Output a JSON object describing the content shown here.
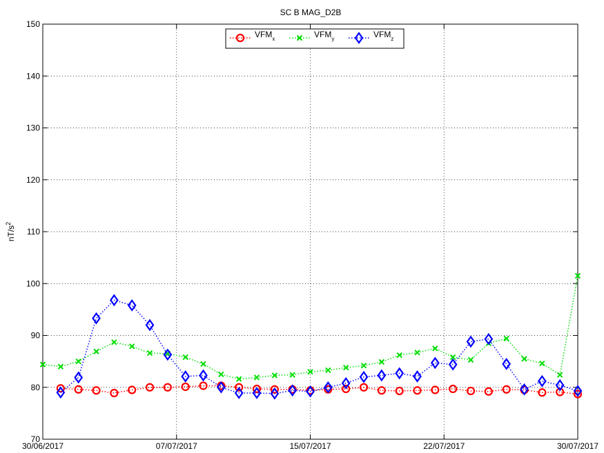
{
  "chart_data": {
    "type": "line",
    "title": "SC B MAG_D2B",
    "ylabel": "nT/s",
    "ylabel_sup": "2",
    "x": [
      0,
      1,
      2,
      3,
      4,
      5,
      6,
      7,
      8,
      9,
      10,
      11,
      12,
      13,
      14,
      15,
      16,
      17,
      18,
      19,
      20,
      21,
      22,
      23,
      24,
      25,
      26,
      27,
      28,
      29,
      30
    ],
    "xlim": [
      0,
      30
    ],
    "xticks": [
      {
        "value": 0,
        "label": "30/06/2017"
      },
      {
        "value": 7.5,
        "label": "07/07/2017"
      },
      {
        "value": 15,
        "label": "15/07/2017"
      },
      {
        "value": 22.5,
        "label": "22/07/2017"
      },
      {
        "value": 30,
        "label": "30/07/2017"
      }
    ],
    "ylim": [
      70,
      150
    ],
    "yticks": [
      70,
      80,
      90,
      100,
      110,
      120,
      130,
      140,
      150
    ],
    "grid": true,
    "legend": "top",
    "series": [
      {
        "name": "VFM",
        "sub": "x",
        "color": "#ff0000",
        "marker": "circle",
        "values": [
          null,
          79.8,
          79.6,
          79.4,
          78.9,
          79.5,
          80.0,
          80.0,
          80.1,
          80.3,
          80.3,
          80.0,
          79.7,
          79.6,
          79.6,
          79.4,
          79.6,
          79.7,
          80.0,
          79.4,
          79.3,
          79.4,
          79.5,
          79.7,
          79.3,
          79.2,
          79.6,
          79.5,
          79.0,
          79.1,
          78.7
        ]
      },
      {
        "name": "VFM",
        "sub": "y",
        "color": "#00dd00",
        "marker": "cross",
        "values": [
          84.4,
          84.0,
          85.0,
          86.9,
          88.7,
          87.9,
          86.6,
          86.5,
          85.8,
          84.5,
          82.5,
          81.6,
          81.9,
          82.3,
          82.4,
          83.0,
          83.3,
          83.8,
          84.2,
          84.9,
          86.2,
          86.7,
          87.5,
          85.8,
          85.3,
          88.5,
          89.4,
          85.5,
          84.6,
          82.4,
          101.5
        ]
      },
      {
        "name": "VFM",
        "sub": "z",
        "color": "#0000ff",
        "marker": "diamond",
        "values": [
          null,
          79.0,
          81.9,
          93.3,
          96.8,
          95.8,
          92.0,
          86.3,
          82.1,
          82.3,
          80.0,
          78.9,
          78.9,
          78.8,
          79.4,
          79.2,
          80.0,
          80.8,
          82.0,
          82.3,
          82.7,
          82.1,
          84.7,
          84.4,
          88.8,
          89.3,
          84.5,
          79.6,
          81.2,
          80.4,
          79.3
        ]
      }
    ]
  }
}
